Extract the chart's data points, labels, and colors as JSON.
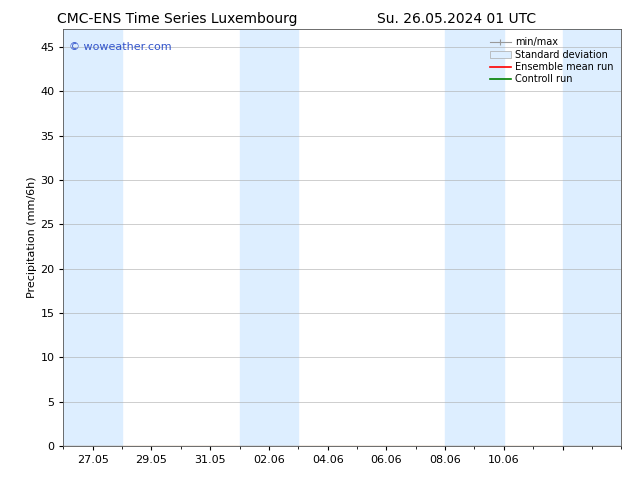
{
  "title_left": "CMC-ENS Time Series Luxembourg",
  "title_right": "Su. 26.05.2024 01 UTC",
  "ylabel": "Precipitation (mm/6h)",
  "ylim": [
    0,
    47
  ],
  "yticks": [
    0,
    5,
    10,
    15,
    20,
    25,
    30,
    35,
    40,
    45
  ],
  "background_color": "#ffffff",
  "plot_bg_color": "#ffffff",
  "grid_color": "#aaaaaa",
  "shaded_color": "#ddeeff",
  "shaded_alpha": 1.0,
  "shaded_bands": [
    [
      0,
      2
    ],
    [
      6,
      8
    ],
    [
      13,
      15
    ],
    [
      17,
      19
    ]
  ],
  "x_min": 0,
  "x_max": 19,
  "xtick_positions": [
    1,
    3,
    5,
    7,
    9,
    11,
    13,
    15,
    17
  ],
  "xtick_labels": [
    "27.05",
    "29.05",
    "31.05",
    "02.06",
    "04.06",
    "06.06",
    "08.06",
    "10.06",
    ""
  ],
  "watermark": "© woweather.com",
  "watermark_color": "#3355cc",
  "legend_fontsize": 7,
  "title_fontsize": 10,
  "axis_label_fontsize": 8,
  "tick_fontsize": 8
}
